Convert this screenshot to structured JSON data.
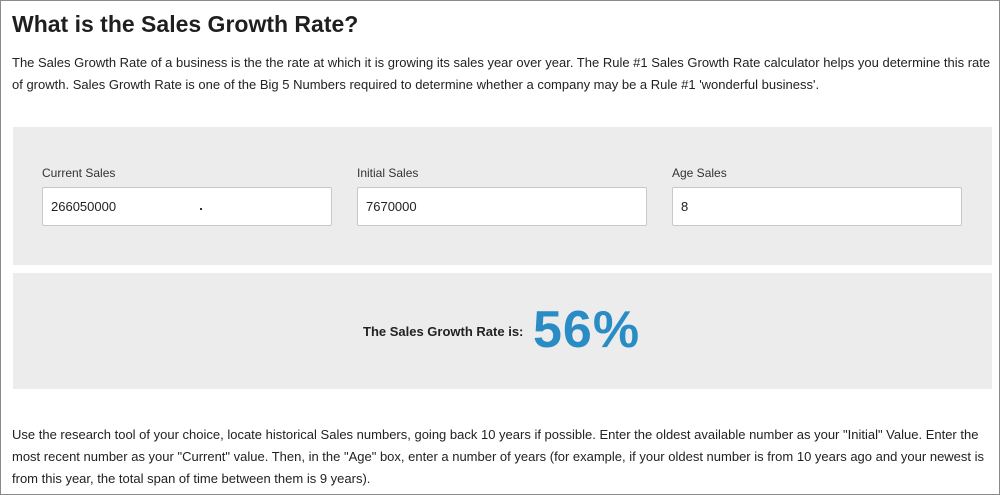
{
  "header": {
    "title": "What is the Sales Growth Rate?"
  },
  "intro": {
    "text": "The Sales Growth Rate of a business is the the rate at which it is growing its sales year over year. The Rule #1 Sales Growth Rate calculator helps you determine this rate of growth. Sales Growth Rate is one of the Big 5 Numbers required to determine whether a company may be a Rule #1 'wonderful business'."
  },
  "calculator": {
    "fields": [
      {
        "label": "Current Sales",
        "value": "266050000"
      },
      {
        "label": "Initial Sales",
        "value": "7670000"
      },
      {
        "label": "Age Sales",
        "value": "8"
      }
    ]
  },
  "result": {
    "label": "The Sales Growth Rate is:",
    "value": "56%",
    "value_color": "#2a8cc4"
  },
  "instructions": {
    "text": "Use the research tool of your choice, locate historical Sales numbers, going back 10 years if possible. Enter the oldest available number as your \"Initial\" Value. Enter the most recent number as your \"Current\" value. Then, in the \"Age\" box, enter a number of years (for example, if your oldest number is from 10 years ago and your newest is from this year, the total span of time between them is 9 years)."
  }
}
